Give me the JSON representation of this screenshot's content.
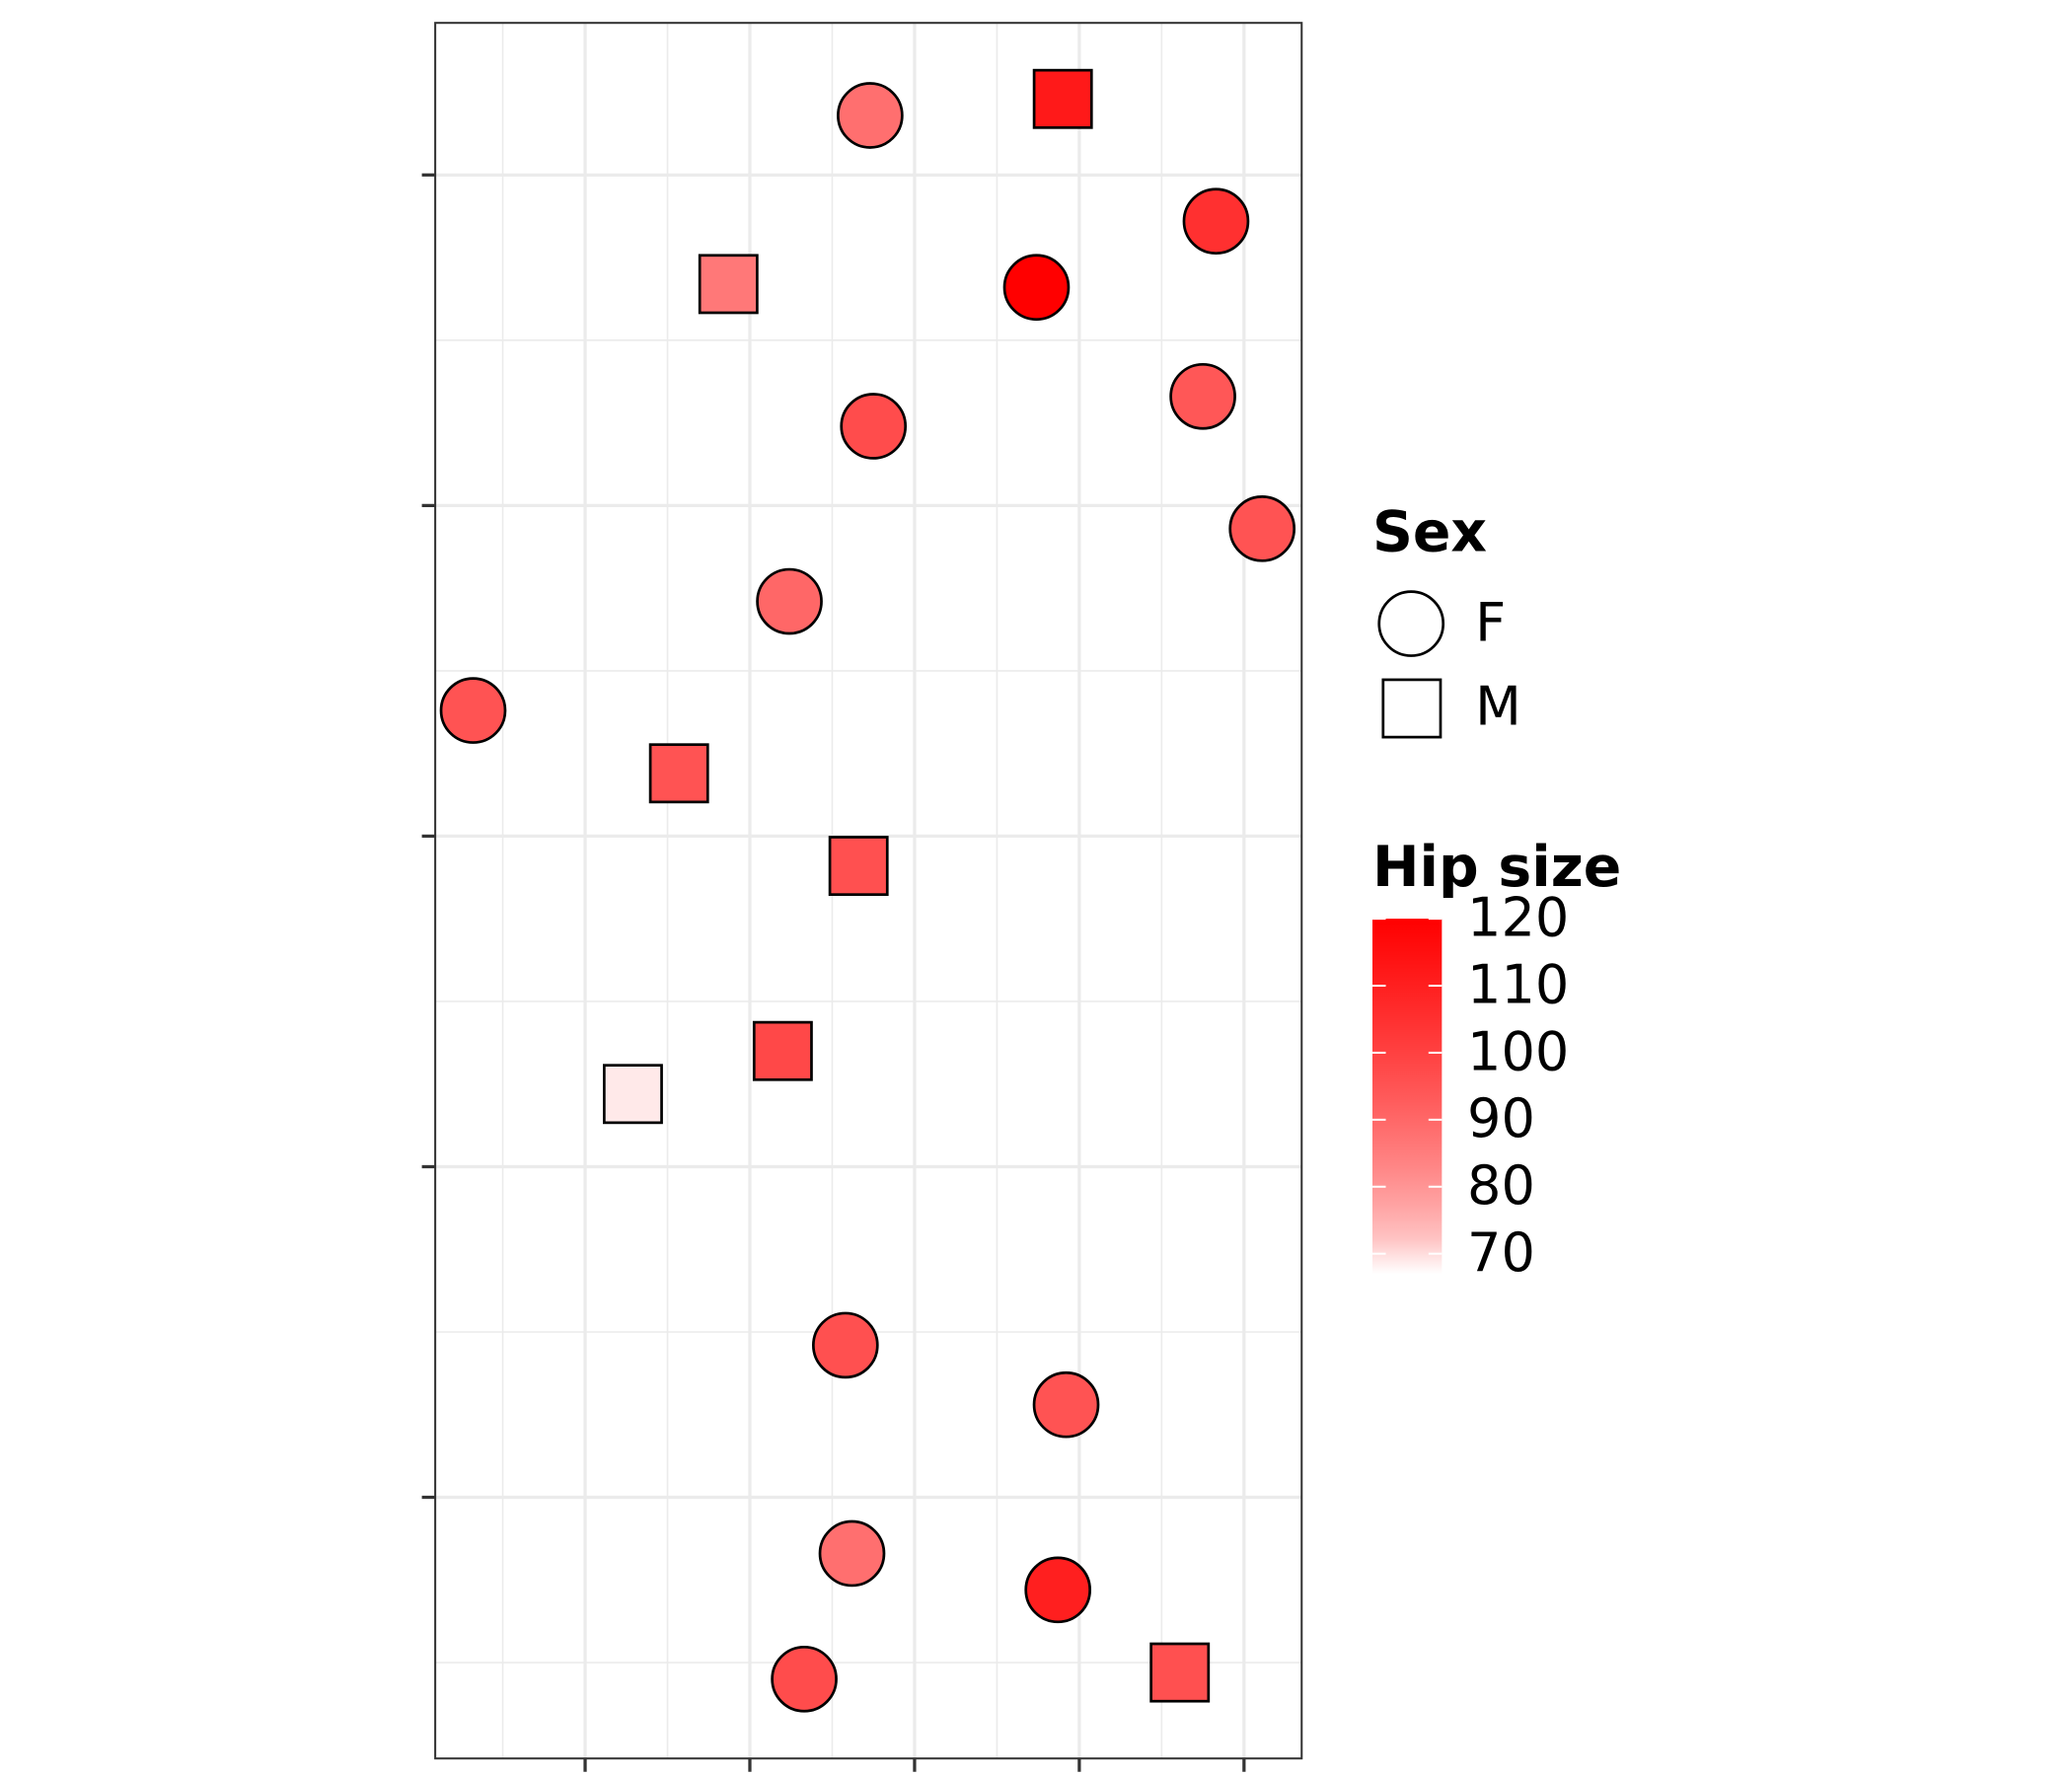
{
  "chart_data": {
    "type": "scatter",
    "x": [
      2.73,
      3.9,
      4.83,
      1.87,
      3.74,
      4.75,
      2.75,
      5.11,
      2.24,
      0.32,
      1.57,
      2.66,
      2.2,
      1.29,
      2.58,
      3.92,
      2.62,
      3.87,
      2.33,
      4.61
    ],
    "y": [
      5.18,
      5.23,
      4.86,
      4.67,
      4.66,
      4.33,
      4.24,
      3.93,
      3.71,
      3.38,
      3.19,
      2.91,
      2.35,
      2.22,
      1.46,
      1.28,
      0.83,
      0.72,
      0.45,
      0.47
    ],
    "sex": [
      "F",
      "M",
      "F",
      "M",
      "F",
      "F",
      "F",
      "F",
      "F",
      "F",
      "M",
      "M",
      "M",
      "M",
      "F",
      "F",
      "F",
      "F",
      "F",
      "M"
    ],
    "hip": [
      88,
      112,
      105,
      86,
      120,
      94,
      97,
      95,
      90,
      95,
      95,
      96,
      98,
      68,
      96,
      95,
      88,
      110,
      97,
      96
    ],
    "xlim": [
      0.09,
      5.35
    ],
    "ylim": [
      0.21,
      5.46
    ],
    "xticks": [
      1,
      2,
      3,
      4,
      5
    ],
    "yticks": [
      1,
      2,
      3,
      4,
      5
    ],
    "grid": true,
    "shape_legend": {
      "title": "Sex",
      "labels": [
        "F",
        "M"
      ]
    },
    "color_legend": {
      "title": "Hip size",
      "ticks": [
        70,
        80,
        90,
        100,
        110,
        120
      ],
      "lim": [
        67,
        120
      ],
      "low": "#ffffff",
      "high": "#ff0000"
    }
  }
}
